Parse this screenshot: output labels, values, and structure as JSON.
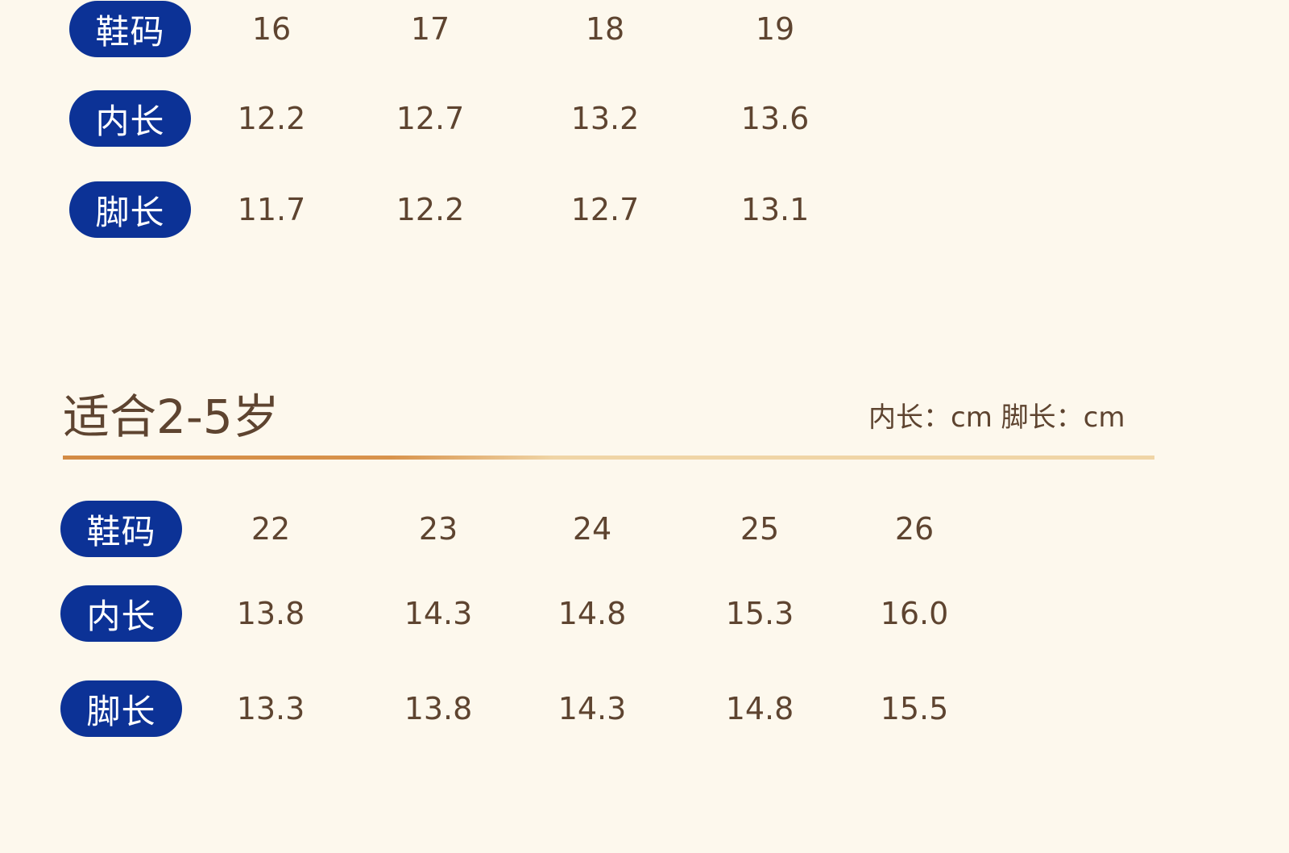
{
  "section_top": {
    "rows": [
      {
        "label": "鞋码",
        "values": [
          "16",
          "17",
          "18",
          "19"
        ]
      },
      {
        "label": "内长",
        "values": [
          "12.2",
          "12.7",
          "13.2",
          "13.6"
        ]
      },
      {
        "label": "脚长",
        "values": [
          "11.7",
          "12.2",
          "12.7",
          "13.1"
        ]
      }
    ]
  },
  "section_bottom": {
    "title": "适合2-5岁",
    "unit_note": "内长：cm 脚长：cm",
    "rows": [
      {
        "label": "鞋码",
        "values": [
          "22",
          "23",
          "24",
          "25",
          "26"
        ]
      },
      {
        "label": "内长",
        "values": [
          "13.8",
          "14.3",
          "14.8",
          "15.3",
          "16.0"
        ]
      },
      {
        "label": "脚长",
        "values": [
          "13.3",
          "13.8",
          "14.3",
          "14.8",
          "15.5"
        ]
      }
    ]
  },
  "colors": {
    "background": "#fdf8ed",
    "pill": "#0c3296",
    "text": "#5e4430",
    "rule": "#d38b45"
  }
}
